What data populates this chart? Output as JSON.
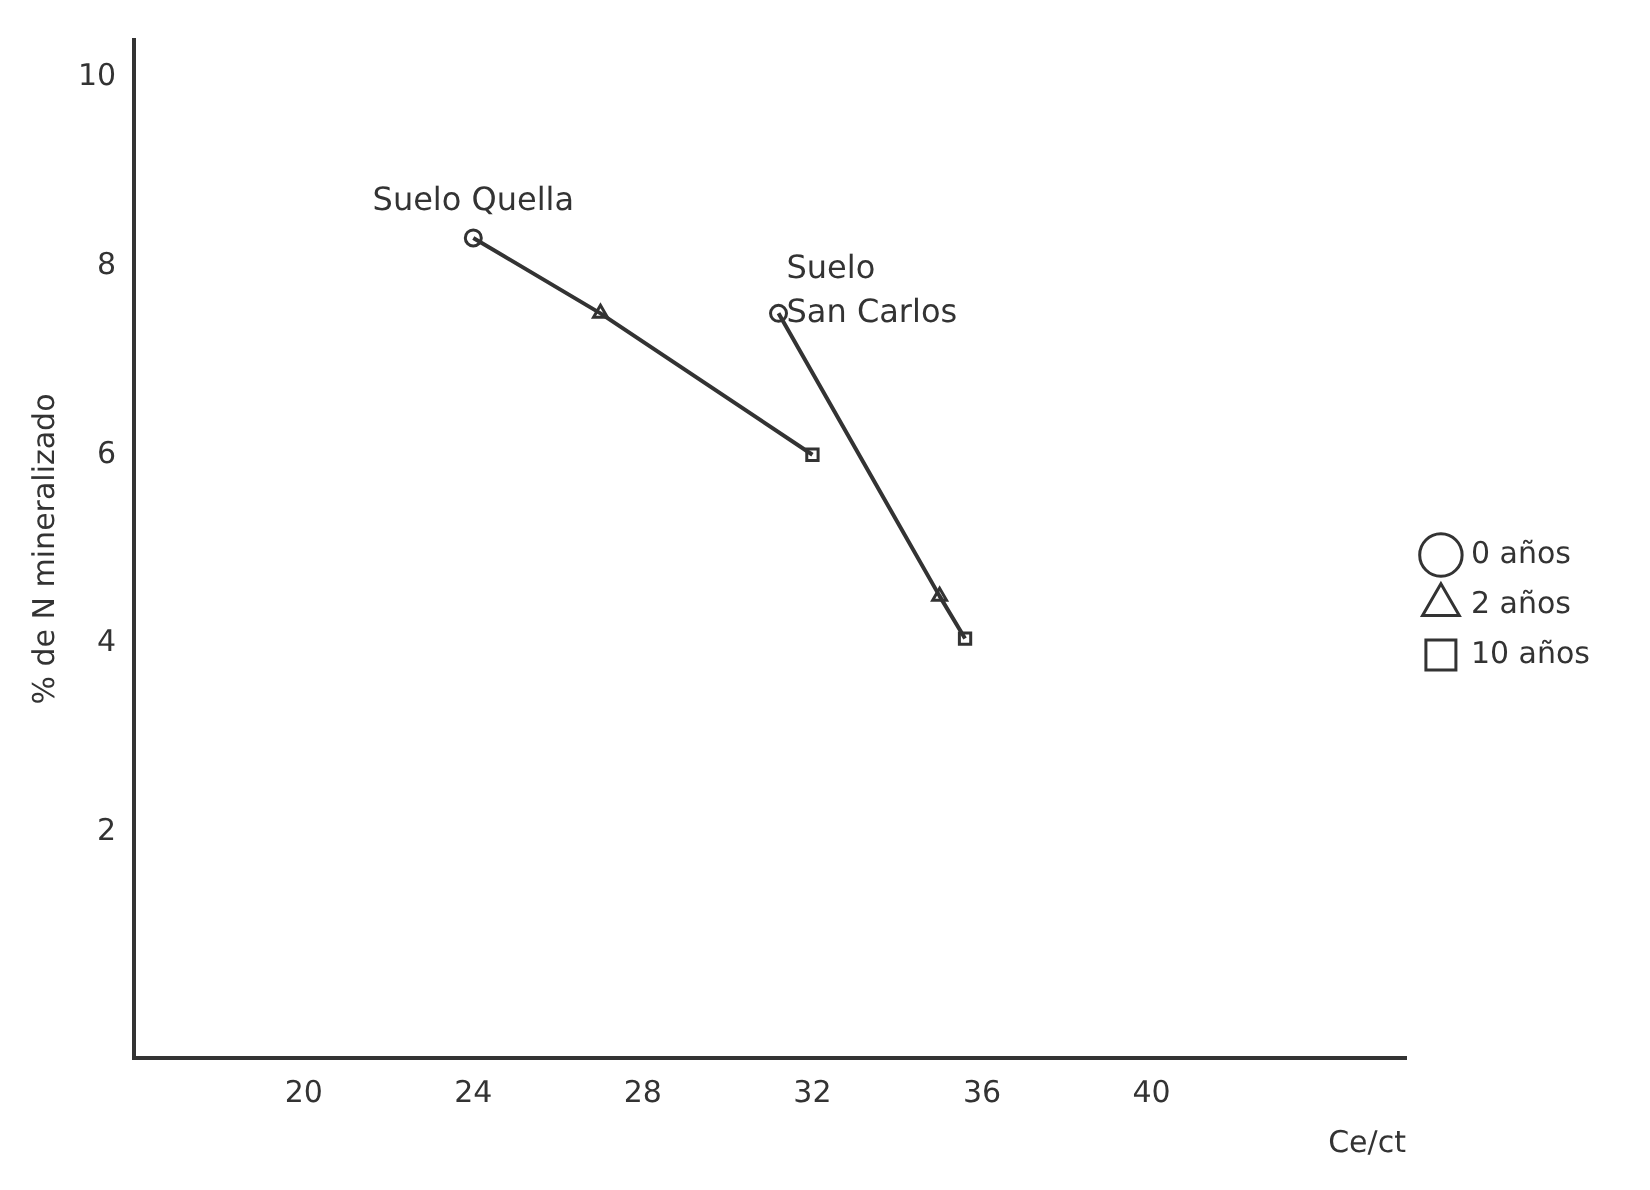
{
  "chart_data": {
    "type": "scatter",
    "xlabel": "Ce/ct",
    "ylabel": "% de N mineralizado",
    "xlim": [
      16,
      46
    ],
    "xticks": [
      20,
      24,
      28,
      32,
      36,
      40
    ],
    "ylim": [
      -0.4,
      10.4
    ],
    "yticks": [
      2,
      4,
      6,
      8,
      10
    ],
    "grid": false,
    "legend": "right",
    "series": [
      {
        "name": "Suelo Quella",
        "type": "line",
        "color": "#333333",
        "marker": "none",
        "x": [
          24,
          27,
          32
        ],
        "values": [
          8.3,
          7.5,
          6.0
        ]
      },
      {
        "name": "Suelo San Carlos",
        "type": "line",
        "color": "#333333",
        "marker": "none",
        "x": [
          31.2,
          35,
          35.6
        ],
        "values": [
          7.5,
          4.5,
          4.05
        ]
      },
      {
        "name": "0 años",
        "type": "scatter",
        "color": "#333333",
        "marker": "circle",
        "x": [
          24,
          31.2
        ],
        "values": [
          8.3,
          7.5
        ]
      },
      {
        "name": "2 años",
        "type": "scatter",
        "color": "#333333",
        "marker": "triangle",
        "x": [
          27,
          35
        ],
        "values": [
          7.5,
          4.5
        ]
      },
      {
        "name": "10 años",
        "type": "scatter",
        "color": "#333333",
        "marker": "square",
        "x": [
          32,
          35.6
        ],
        "values": [
          6.0,
          4.05
        ]
      }
    ]
  }
}
